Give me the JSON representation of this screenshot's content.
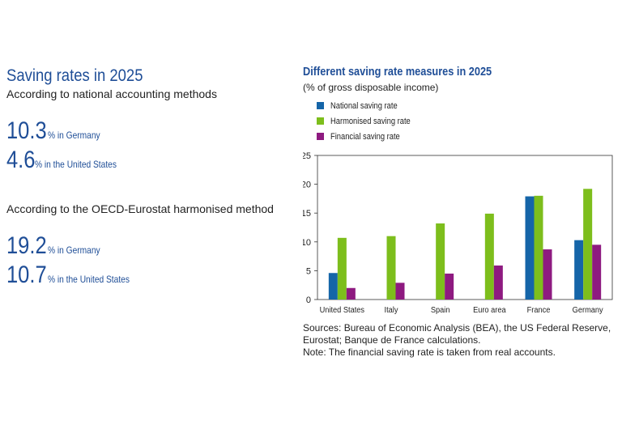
{
  "left": {
    "heading": "Saving rates in 2025",
    "method_national": "According to national accounting methods",
    "national_stats": [
      {
        "value": "10.3",
        "text": "% in Germany"
      },
      {
        "value": "4.6",
        "text": "% in the United States"
      }
    ],
    "method_harmonised": "According to the OECD-Eurostat harmonised method",
    "harmonised_stats": [
      {
        "value": "19.2",
        "text": "% in Germany"
      },
      {
        "value": "10.7",
        "text": " % in the United States"
      }
    ]
  },
  "colors": {
    "accent": "#1f4e97",
    "national": "#1565a8",
    "harmonised": "#7dbe1c",
    "financial": "#8e1a80"
  },
  "chart_data": {
    "type": "bar",
    "title": "Different saving rate measures in 2025",
    "subtitle": "(% of gross disposable income)",
    "categories": [
      "United States",
      "Italy",
      "Spain",
      "Euro area",
      "France",
      "Germany"
    ],
    "series": [
      {
        "name": "National saving rate",
        "color": "#1565a8",
        "values": [
          4.6,
          null,
          null,
          null,
          17.9,
          10.3
        ]
      },
      {
        "name": "Harmonised saving rate",
        "color": "#7dbe1c",
        "values": [
          10.7,
          11.0,
          13.2,
          14.9,
          18.0,
          19.2
        ]
      },
      {
        "name": "Financial saving rate",
        "color": "#8e1a80",
        "values": [
          2.0,
          2.9,
          4.5,
          5.9,
          8.7,
          9.5
        ]
      }
    ],
    "ylim": [
      0,
      25
    ],
    "yticks": [
      0,
      5,
      10,
      15,
      20,
      25
    ],
    "grid": false,
    "legend_position": "top-left"
  },
  "notes": {
    "sources": "Sources: Bureau of Economic Analysis (BEA), the US Federal Reserve, Eurostat; Banque de France calculations.",
    "note": "Note: The financial saving rate is taken from real accounts."
  }
}
